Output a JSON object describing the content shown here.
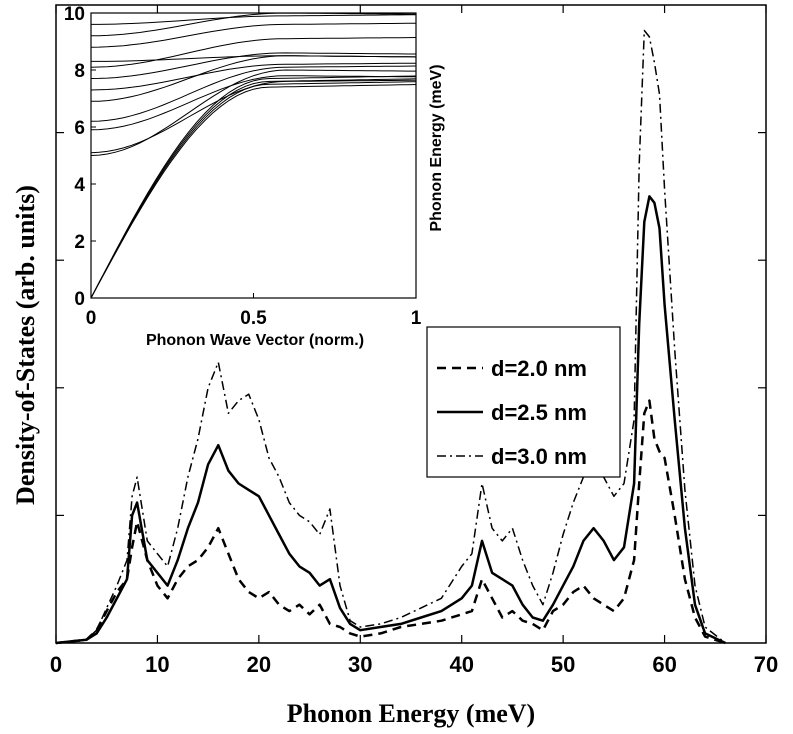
{
  "chart_data": [
    {
      "type": "line",
      "xlabel": "Phonon Energy (meV)",
      "ylabel": "Density-of-States (arb. units)",
      "xlim": [
        0,
        70
      ],
      "ylim": [
        0,
        10
      ],
      "xticks": [
        "0",
        "10",
        "20",
        "30",
        "40",
        "50",
        "60",
        "70"
      ],
      "legend_position": "right",
      "series": [
        {
          "name": "d=2.0 nm",
          "style": "dashed",
          "points": [
            [
              0,
              0
            ],
            [
              3,
              0.05
            ],
            [
              4,
              0.2
            ],
            [
              5,
              0.5
            ],
            [
              6,
              0.8
            ],
            [
              7,
              1.0
            ],
            [
              7.5,
              1.5
            ],
            [
              8,
              1.9
            ],
            [
              9,
              1.3
            ],
            [
              10,
              0.9
            ],
            [
              11,
              0.7
            ],
            [
              12,
              1.0
            ],
            [
              13,
              1.2
            ],
            [
              14,
              1.3
            ],
            [
              15,
              1.5
            ],
            [
              16,
              1.8
            ],
            [
              17,
              1.4
            ],
            [
              18,
              1.0
            ],
            [
              19,
              0.8
            ],
            [
              20,
              0.7
            ],
            [
              21,
              0.8
            ],
            [
              22,
              0.6
            ],
            [
              23,
              0.5
            ],
            [
              24,
              0.6
            ],
            [
              25,
              0.45
            ],
            [
              26,
              0.6
            ],
            [
              27,
              0.3
            ],
            [
              28,
              0.25
            ],
            [
              29,
              0.15
            ],
            [
              30,
              0.1
            ],
            [
              32,
              0.15
            ],
            [
              34,
              0.25
            ],
            [
              36,
              0.3
            ],
            [
              38,
              0.35
            ],
            [
              40,
              0.45
            ],
            [
              41,
              0.5
            ],
            [
              42,
              1.0
            ],
            [
              43,
              0.7
            ],
            [
              44,
              0.4
            ],
            [
              45,
              0.5
            ],
            [
              46,
              0.35
            ],
            [
              47,
              0.3
            ],
            [
              48,
              0.2
            ],
            [
              49,
              0.5
            ],
            [
              50,
              0.6
            ],
            [
              51,
              0.8
            ],
            [
              52,
              0.9
            ],
            [
              53,
              0.7
            ],
            [
              54,
              0.6
            ],
            [
              55,
              0.5
            ],
            [
              56,
              0.7
            ],
            [
              57,
              1.3
            ],
            [
              57.5,
              2.5
            ],
            [
              58,
              3.6
            ],
            [
              58.5,
              3.8
            ],
            [
              59,
              3.2
            ],
            [
              59.5,
              3.0
            ],
            [
              60,
              2.9
            ],
            [
              61,
              2.0
            ],
            [
              62,
              1.0
            ],
            [
              63,
              0.4
            ],
            [
              64,
              0.1
            ],
            [
              66,
              0
            ]
          ]
        },
        {
          "name": "d=2.5 nm",
          "style": "solid",
          "points": [
            [
              0,
              0
            ],
            [
              3,
              0.05
            ],
            [
              4,
              0.15
            ],
            [
              5,
              0.4
            ],
            [
              6,
              0.7
            ],
            [
              7,
              1.0
            ],
            [
              7.5,
              2.0
            ],
            [
              8,
              2.2
            ],
            [
              9,
              1.3
            ],
            [
              10,
              1.1
            ],
            [
              11,
              0.9
            ],
            [
              12,
              1.3
            ],
            [
              13,
              1.8
            ],
            [
              14,
              2.2
            ],
            [
              15,
              2.8
            ],
            [
              16,
              3.1
            ],
            [
              17,
              2.7
            ],
            [
              18,
              2.5
            ],
            [
              19,
              2.4
            ],
            [
              20,
              2.3
            ],
            [
              21,
              2.0
            ],
            [
              22,
              1.7
            ],
            [
              23,
              1.4
            ],
            [
              24,
              1.2
            ],
            [
              25,
              1.1
            ],
            [
              26,
              0.9
            ],
            [
              27,
              1.0
            ],
            [
              28,
              0.55
            ],
            [
              29,
              0.3
            ],
            [
              30,
              0.2
            ],
            [
              32,
              0.25
            ],
            [
              34,
              0.3
            ],
            [
              36,
              0.4
            ],
            [
              38,
              0.5
            ],
            [
              40,
              0.7
            ],
            [
              41,
              0.9
            ],
            [
              42,
              1.6
            ],
            [
              43,
              1.1
            ],
            [
              44,
              1.0
            ],
            [
              45,
              0.9
            ],
            [
              46,
              0.6
            ],
            [
              47,
              0.4
            ],
            [
              48,
              0.35
            ],
            [
              49,
              0.6
            ],
            [
              50,
              0.9
            ],
            [
              51,
              1.2
            ],
            [
              52,
              1.6
            ],
            [
              53,
              1.8
            ],
            [
              54,
              1.6
            ],
            [
              55,
              1.3
            ],
            [
              56,
              1.5
            ],
            [
              57,
              2.5
            ],
            [
              57.5,
              5.0
            ],
            [
              58,
              6.6
            ],
            [
              58.5,
              7.0
            ],
            [
              59,
              6.9
            ],
            [
              59.5,
              6.5
            ],
            [
              60,
              5.3
            ],
            [
              61,
              3.5
            ],
            [
              62,
              1.8
            ],
            [
              63,
              0.6
            ],
            [
              64,
              0.15
            ],
            [
              66,
              0
            ]
          ]
        },
        {
          "name": "d=3.0 nm",
          "style": "dash-dot",
          "points": [
            [
              0,
              0
            ],
            [
              3,
              0.05
            ],
            [
              4,
              0.2
            ],
            [
              5,
              0.55
            ],
            [
              6,
              0.9
            ],
            [
              7,
              1.3
            ],
            [
              7.5,
              2.3
            ],
            [
              8,
              2.6
            ],
            [
              9,
              1.6
            ],
            [
              10,
              1.4
            ],
            [
              11,
              1.2
            ],
            [
              12,
              1.8
            ],
            [
              13,
              2.6
            ],
            [
              14,
              3.2
            ],
            [
              15,
              4.0
            ],
            [
              16,
              4.4
            ],
            [
              17,
              3.6
            ],
            [
              18,
              3.8
            ],
            [
              19,
              3.9
            ],
            [
              20,
              3.5
            ],
            [
              21,
              2.9
            ],
            [
              22,
              2.6
            ],
            [
              23,
              2.2
            ],
            [
              24,
              2.0
            ],
            [
              25,
              1.9
            ],
            [
              26,
              1.7
            ],
            [
              27,
              2.1
            ],
            [
              28,
              0.9
            ],
            [
              29,
              0.35
            ],
            [
              30,
              0.25
            ],
            [
              32,
              0.3
            ],
            [
              34,
              0.4
            ],
            [
              36,
              0.55
            ],
            [
              38,
              0.7
            ],
            [
              40,
              1.2
            ],
            [
              41,
              1.4
            ],
            [
              42,
              2.5
            ],
            [
              43,
              1.8
            ],
            [
              44,
              1.6
            ],
            [
              45,
              1.8
            ],
            [
              46,
              1.3
            ],
            [
              47,
              0.9
            ],
            [
              48,
              0.6
            ],
            [
              49,
              1.1
            ],
            [
              50,
              1.7
            ],
            [
              51,
              2.2
            ],
            [
              52,
              2.6
            ],
            [
              53,
              2.8
            ],
            [
              54,
              2.6
            ],
            [
              55,
              2.3
            ],
            [
              56,
              2.5
            ],
            [
              57,
              3.5
            ],
            [
              57.5,
              7.5
            ],
            [
              58,
              9.6
            ],
            [
              58.5,
              9.5
            ],
            [
              59,
              9.1
            ],
            [
              59.5,
              8.6
            ],
            [
              60,
              7.1
            ],
            [
              61,
              4.6
            ],
            [
              62,
              2.4
            ],
            [
              63,
              0.9
            ],
            [
              64,
              0.25
            ],
            [
              66,
              0
            ]
          ]
        }
      ]
    },
    {
      "type": "line",
      "xlabel": "Phonon Wave Vector (norm.)",
      "ylabel": "Phonon Energy (meV)",
      "xlim": [
        0,
        1
      ],
      "ylim": [
        0,
        10
      ],
      "xticks": [
        "0",
        "0.5",
        "1"
      ],
      "yticks": [
        "0",
        "2",
        "4",
        "6",
        "8",
        "10"
      ],
      "series": [
        {
          "values": [
            0,
            7.6
          ]
        },
        {
          "values": [
            0,
            7.5
          ]
        },
        {
          "values": [
            0,
            7.7
          ]
        },
        {
          "values": [
            0,
            7.4
          ]
        },
        {
          "values": [
            5.0,
            8.0
          ]
        },
        {
          "values": [
            5.1,
            7.6
          ]
        },
        {
          "values": [
            5.9,
            7.8
          ]
        },
        {
          "values": [
            6.2,
            8.1
          ]
        },
        {
          "values": [
            6.9,
            8.5
          ]
        },
        {
          "values": [
            7.3,
            8.2
          ]
        },
        {
          "values": [
            7.7,
            8.6
          ]
        },
        {
          "values": [
            8.1,
            9.1
          ]
        },
        {
          "values": [
            8.3,
            8.5
          ]
        },
        {
          "values": [
            8.8,
            9.6
          ]
        },
        {
          "values": [
            9.2,
            10.0
          ]
        },
        {
          "values": [
            9.6,
            9.9
          ]
        }
      ]
    }
  ]
}
